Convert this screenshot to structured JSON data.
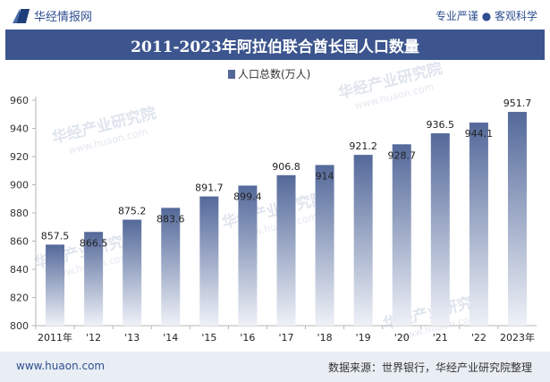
{
  "header": {
    "logo_text": "华经情报网",
    "slogan": "专业严谨 ● 客观科学"
  },
  "title": "2011-2023年阿拉伯联合酋长国人口数量",
  "footer": {
    "website": "www.huaon.com",
    "source": "数据来源：世界银行，华经产业研究院整理"
  },
  "watermark": {
    "cn": "华经产业研究院",
    "url": "www.huaon.com"
  },
  "colors": {
    "bar_top": "#54699a",
    "bar_bottom": "#eef1f7",
    "title_bg": "#3c558e"
  },
  "chart_data": {
    "type": "bar",
    "legend": "人口总数(万人)",
    "legend_position": "top-center",
    "categories": [
      "2011年",
      "'12",
      "'13",
      "'14",
      "'15",
      "'16",
      "'17",
      "'18",
      "'19",
      "'20",
      "'21",
      "'22",
      "2023年"
    ],
    "series": [
      {
        "name": "人口总数(万人)",
        "values": [
          857.5,
          866.5,
          875.2,
          883.6,
          891.7,
          899.4,
          906.8,
          914,
          921.2,
          928.7,
          936.5,
          944.1,
          951.7
        ],
        "labels": [
          "857.5",
          "866.5",
          "875.2",
          "883.6",
          "891.7",
          "899.4",
          "906.8",
          "914",
          "921.2",
          "928.7",
          "936.5",
          "944.1",
          "951.7"
        ]
      }
    ],
    "ylim": [
      800,
      960
    ],
    "yticks": [
      800,
      820,
      840,
      860,
      880,
      900,
      920,
      940,
      960
    ],
    "grid": false
  }
}
